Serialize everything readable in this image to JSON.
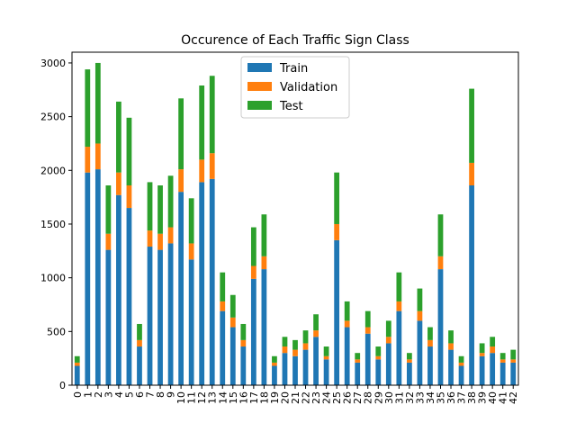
{
  "chart_data": {
    "type": "bar",
    "stacked": true,
    "title": "Occurence of Each Traffic Sign Class",
    "xlabel": "",
    "ylabel": "",
    "ylim": [
      0,
      3100
    ],
    "yticks": [
      0,
      500,
      1000,
      1500,
      2000,
      2500,
      3000
    ],
    "grid": false,
    "legend": "top-center",
    "categories": [
      "0",
      "1",
      "2",
      "3",
      "4",
      "5",
      "6",
      "7",
      "8",
      "9",
      "10",
      "11",
      "12",
      "13",
      "14",
      "15",
      "16",
      "17",
      "18",
      "19",
      "20",
      "21",
      "22",
      "23",
      "24",
      "25",
      "26",
      "27",
      "28",
      "29",
      "30",
      "31",
      "32",
      "33",
      "34",
      "35",
      "36",
      "37",
      "38",
      "39",
      "40",
      "41",
      "42"
    ],
    "series": [
      {
        "name": "Train",
        "color": "#1f77b4",
        "values": [
          180,
          1980,
          2010,
          1260,
          1770,
          1650,
          360,
          1290,
          1260,
          1320,
          1800,
          1170,
          1890,
          1920,
          690,
          540,
          360,
          990,
          1080,
          180,
          300,
          270,
          330,
          450,
          240,
          1350,
          540,
          210,
          480,
          240,
          390,
          690,
          210,
          600,
          360,
          1080,
          330,
          180,
          1860,
          270,
          300,
          210,
          210
        ]
      },
      {
        "name": "Validation",
        "color": "#ff7f0e",
        "values": [
          30,
          240,
          240,
          150,
          210,
          210,
          60,
          150,
          150,
          150,
          210,
          150,
          210,
          240,
          90,
          90,
          60,
          120,
          120,
          30,
          60,
          60,
          60,
          60,
          30,
          150,
          60,
          30,
          60,
          30,
          60,
          90,
          30,
          90,
          60,
          120,
          60,
          30,
          210,
          30,
          60,
          30,
          30
        ]
      },
      {
        "name": "Test",
        "color": "#2ca02c",
        "values": [
          60,
          720,
          750,
          450,
          660,
          630,
          150,
          450,
          450,
          480,
          660,
          420,
          690,
          720,
          270,
          210,
          150,
          360,
          390,
          60,
          90,
          90,
          120,
          150,
          90,
          480,
          180,
          60,
          150,
          90,
          150,
          270,
          60,
          210,
          120,
          390,
          120,
          60,
          690,
          90,
          90,
          60,
          90
        ]
      }
    ]
  }
}
